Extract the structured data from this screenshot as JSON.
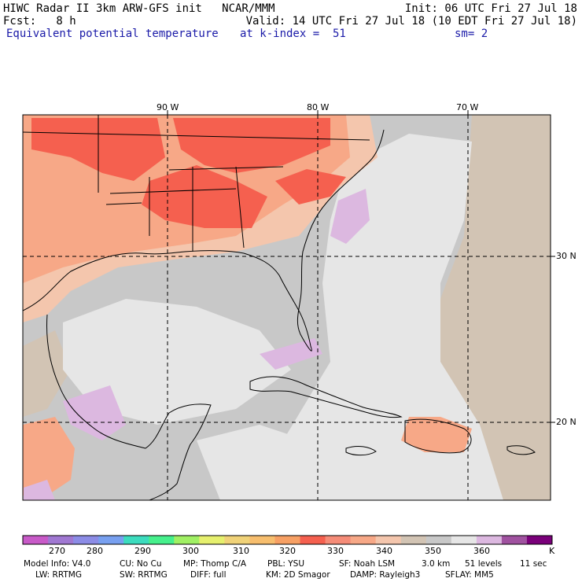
{
  "header": {
    "line1_left": "HIWC Radar II 3km ARW-GFS init   NCAR/MMM",
    "line1_right": "Init: 06 UTC Fri 27 Jul 18",
    "line2_left": "Fcst:   8 h",
    "line2_right": "Valid: 14 UTC Fri 27 Jul 18 (10 EDT Fri 27 Jul 18)",
    "line3_left": "Equivalent potential temperature",
    "line3_mid": "at k-index =  51",
    "line3_right": "sm= 2"
  },
  "map": {
    "lon_labels": [
      "90 W",
      "80 W",
      "70 W"
    ],
    "lat_labels": [
      "30 N",
      "20 N"
    ],
    "colors": {
      "background": "#c8c8c8",
      "light_gray": "#e6e6e6",
      "tan": "#d2c4b4",
      "salmon": "#f7a887",
      "light_salmon": "#f4c6ad",
      "red": "#f5604f",
      "lavender": "#dcb8e0",
      "coast": "#000000"
    }
  },
  "colorbar": {
    "colors": [
      "#c85ac8",
      "#a078d2",
      "#8c8ce6",
      "#78a0f0",
      "#3cdcbe",
      "#46f08c",
      "#a0f064",
      "#e6f06e",
      "#f0d278",
      "#f7be6e",
      "#f7a064",
      "#f5604f",
      "#f58c78",
      "#f7a887",
      "#f4c6ad",
      "#d2c4b4",
      "#c8c8c8",
      "#e6e6e6",
      "#dcb8e0",
      "#a052a0",
      "#7a007a"
    ],
    "tick_labels": [
      "270",
      "280",
      "290",
      "300",
      "310",
      "320",
      "330",
      "340",
      "350",
      "360"
    ],
    "unit": "K"
  },
  "model_info": {
    "line1": [
      "Model Info: V4.0",
      "CU: No Cu",
      "MP: Thomp C/A",
      "PBL: YSU",
      "SF: Noah LSM",
      "3.0 km",
      "51 levels",
      "11 sec"
    ],
    "line2": [
      "LW: RRTMG",
      "SW: RRTMG",
      "DIFF: full",
      "KM: 2D Smagor",
      "DAMP: Rayleigh3",
      "SFLAY: MM5"
    ]
  }
}
